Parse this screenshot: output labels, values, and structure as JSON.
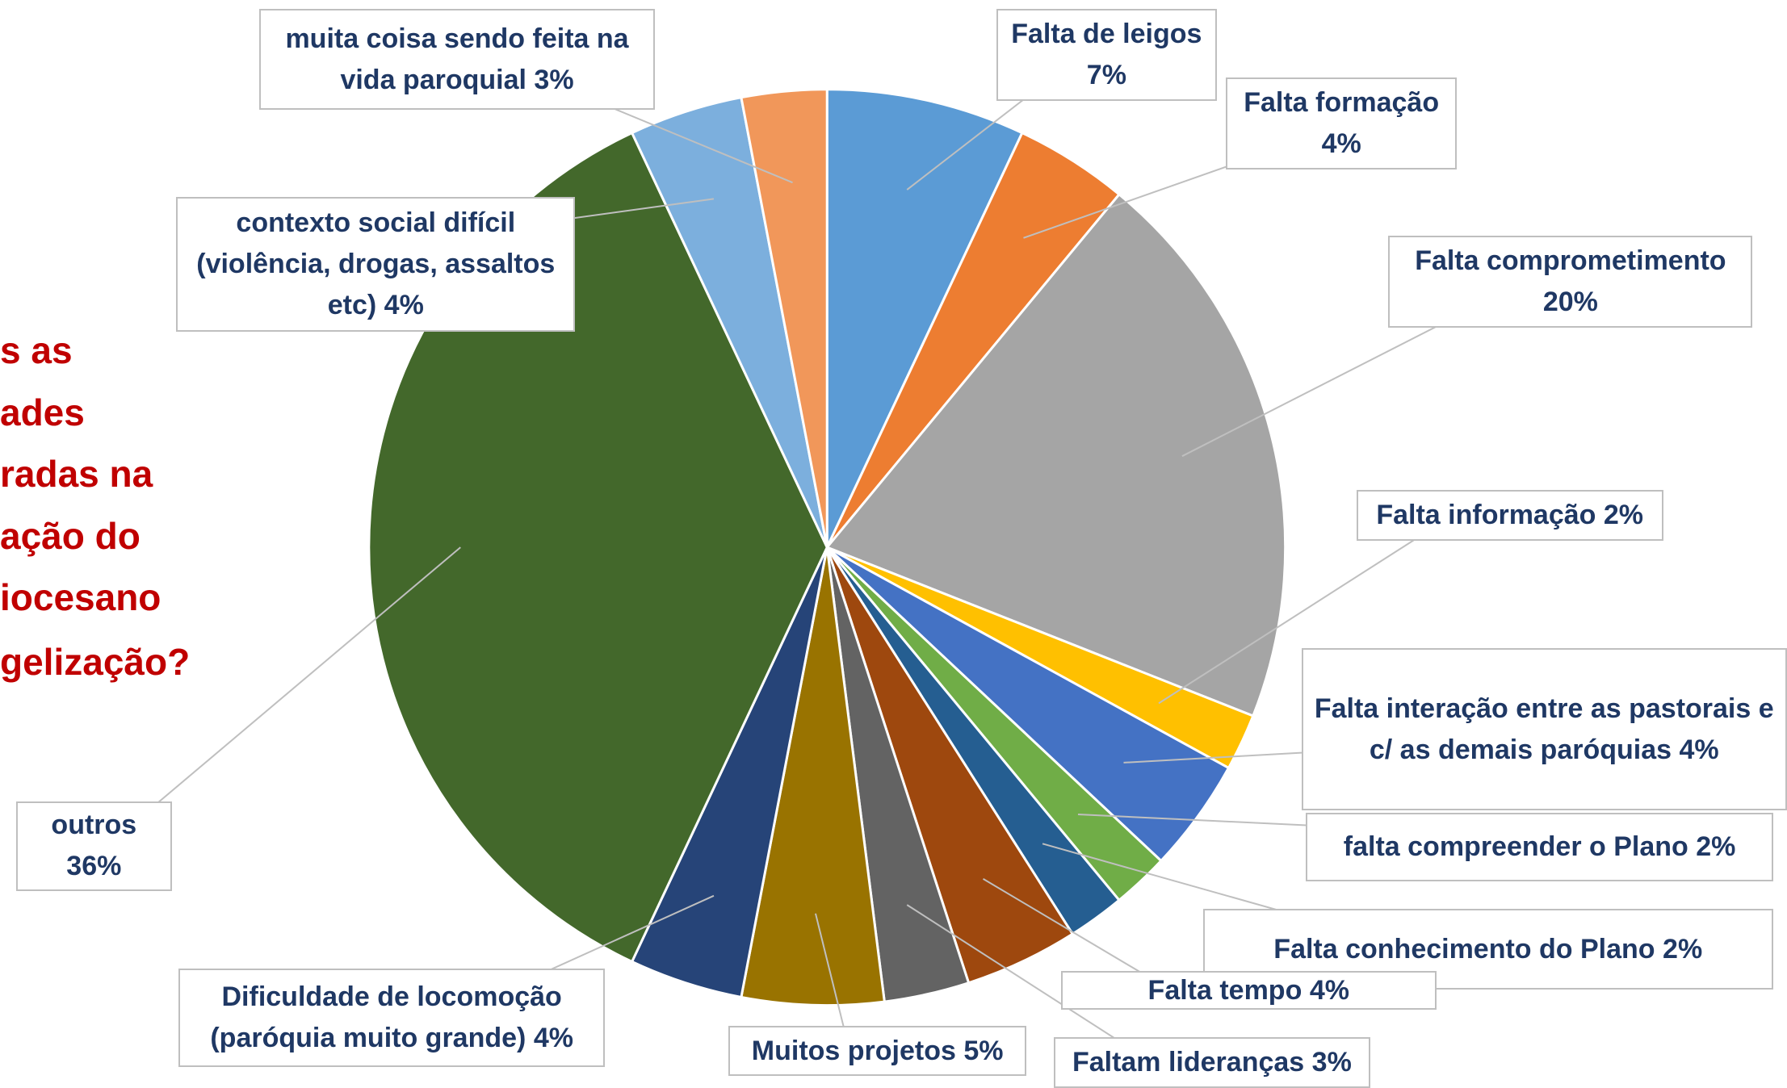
{
  "chart_data": {
    "type": "pie",
    "title_lines": [
      "s as",
      "ades",
      "radas na",
      "ação do",
      "iocesano",
      "gelização?"
    ],
    "categories": [
      "Falta de leigos",
      "Falta formação",
      "Falta comprometimento",
      "Falta informação",
      "Falta interação entre as pastorais e c/ as demais paróquias",
      "falta compreender o Plano",
      "Falta conhecimento do Plano",
      "Falta tempo",
      "Faltam lideranças",
      "Muitos projetos",
      "Dificuldade de locomoção (paróquia muito grande)",
      "outros",
      "contexto social difícil (violência, drogas, assaltos etc)",
      "muita coisa sendo feita na vida paroquial"
    ],
    "values": [
      7,
      4,
      20,
      2,
      4,
      2,
      2,
      4,
      3,
      5,
      4,
      36,
      4,
      3
    ],
    "value_labels": [
      "7%",
      "4%",
      "20%",
      "2%",
      "4%",
      "2%",
      "2%",
      "4%",
      "3%",
      "5%",
      "4%",
      "36%",
      "4%",
      "3%"
    ],
    "colors": [
      "#5b9bd5",
      "#ed7d31",
      "#a5a5a5",
      "#ffc000",
      "#4472c4",
      "#70ad47",
      "#255e91",
      "#9e480e",
      "#636363",
      "#997300",
      "#264478",
      "#43682b",
      "#7cafdd",
      "#f1975a"
    ]
  }
}
